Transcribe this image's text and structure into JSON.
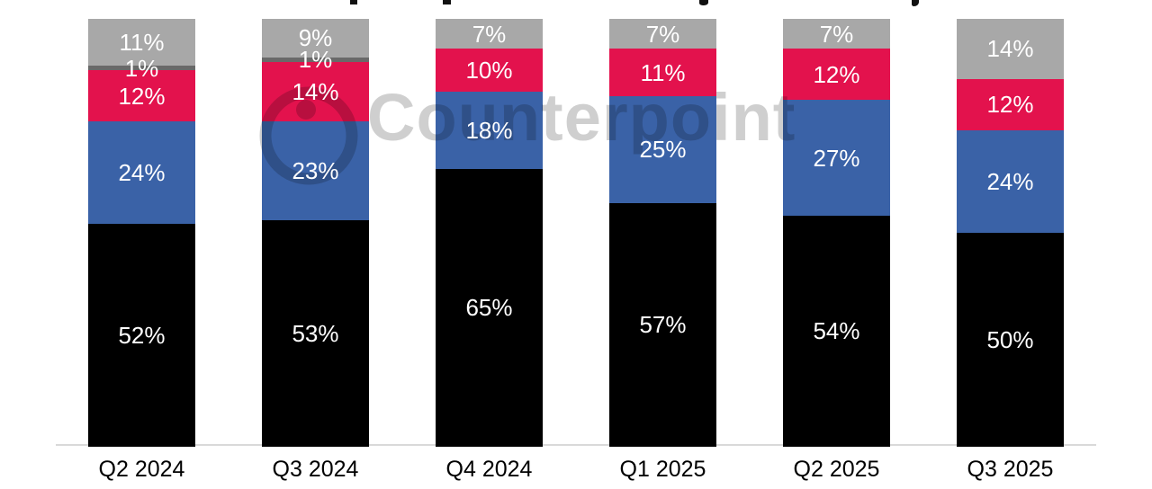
{
  "watermark": {
    "text": "Counterpoint"
  },
  "chart_data": {
    "type": "bar",
    "stacked": true,
    "title": "(title cropped out of frame)",
    "categories": [
      "Q2 2024",
      "Q3 2024",
      "Q4 2024",
      "Q1 2025",
      "Q2 2025",
      "Q3 2025"
    ],
    "series": [
      {
        "name": "black-bottom-segment",
        "color": "#000000",
        "label_color": "#ffffff",
        "values": [
          52,
          53,
          65,
          57,
          54,
          50
        ]
      },
      {
        "name": "blue-segment",
        "color": "#3a62a7",
        "label_color": "#ffffff",
        "values": [
          24,
          23,
          18,
          25,
          27,
          24
        ]
      },
      {
        "name": "red-segment",
        "color": "#e3124d",
        "label_color": "#ffffff",
        "values": [
          12,
          14,
          10,
          11,
          12,
          12
        ]
      },
      {
        "name": "dark-gray-segment",
        "color": "#696969",
        "label_color": "#ffffff",
        "values": [
          1,
          1,
          0,
          0,
          0,
          0
        ]
      },
      {
        "name": "gray-top-segment",
        "color": "#a8a8a8",
        "label_color": "#ffffff",
        "values": [
          11,
          9,
          7,
          7,
          7,
          14
        ]
      }
    ],
    "data_label_format": "{value}%",
    "ylim": [
      0,
      100
    ],
    "unit": "percent",
    "legend_position": "none",
    "grid": false,
    "axis_line_color": "#d9d9d9",
    "watermark": "Counterpoint"
  }
}
